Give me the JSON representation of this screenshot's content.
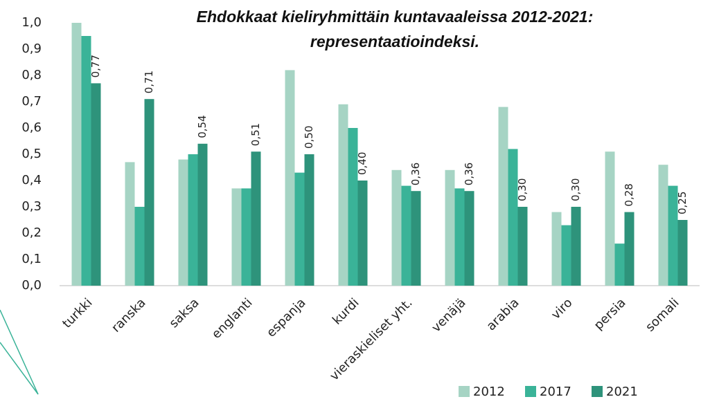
{
  "chart_data": {
    "type": "bar",
    "title": "Ehdokkaat kieliryhmittäin kuntavaaleissa 2012-2021: representaatioindeksi.",
    "categories": [
      "turkki",
      "ranska",
      "saksa",
      "englanti",
      "espanja",
      "kurdi",
      "vieraskieliset yht.",
      "venäjä",
      "arabia",
      "viro",
      "persia",
      "somali"
    ],
    "series": [
      {
        "name": "2012",
        "color": "#a6d4c4",
        "values": [
          1.0,
          0.47,
          0.48,
          0.37,
          0.82,
          0.69,
          0.44,
          0.44,
          0.68,
          0.28,
          0.51,
          0.46
        ]
      },
      {
        "name": "2017",
        "color": "#3ab398",
        "values": [
          0.95,
          0.3,
          0.5,
          0.37,
          0.43,
          0.6,
          0.38,
          0.37,
          0.52,
          0.23,
          0.16,
          0.38
        ]
      },
      {
        "name": "2021",
        "color": "#2e937b",
        "values": [
          0.77,
          0.71,
          0.54,
          0.51,
          0.5,
          0.4,
          0.36,
          0.36,
          0.3,
          0.3,
          0.28,
          0.25
        ],
        "value_labels": [
          "0,77",
          "0,71",
          "0,54",
          "0,51",
          "0,50",
          "0,40",
          "0,36",
          "0,36",
          "0,30",
          "0,30",
          "0,28",
          "0,25"
        ]
      }
    ],
    "ylim": [
      0,
      1.0
    ],
    "yticks": [
      {
        "value": 0,
        "label": "0,0"
      },
      {
        "value": 0.1,
        "label": "0,1"
      },
      {
        "value": 0.2,
        "label": "0,2"
      },
      {
        "value": 0.3,
        "label": "0,3"
      },
      {
        "value": 0.4,
        "label": "0,4"
      },
      {
        "value": 0.5,
        "label": "0,5"
      },
      {
        "value": 0.6,
        "label": "0,6"
      },
      {
        "value": 0.7,
        "label": "0,7"
      },
      {
        "value": 0.8,
        "label": "0,8"
      },
      {
        "value": 0.9,
        "label": "0,9"
      },
      {
        "value": 1.0,
        "label": "1,0"
      }
    ],
    "grid": false,
    "legend": "bottom-right"
  }
}
